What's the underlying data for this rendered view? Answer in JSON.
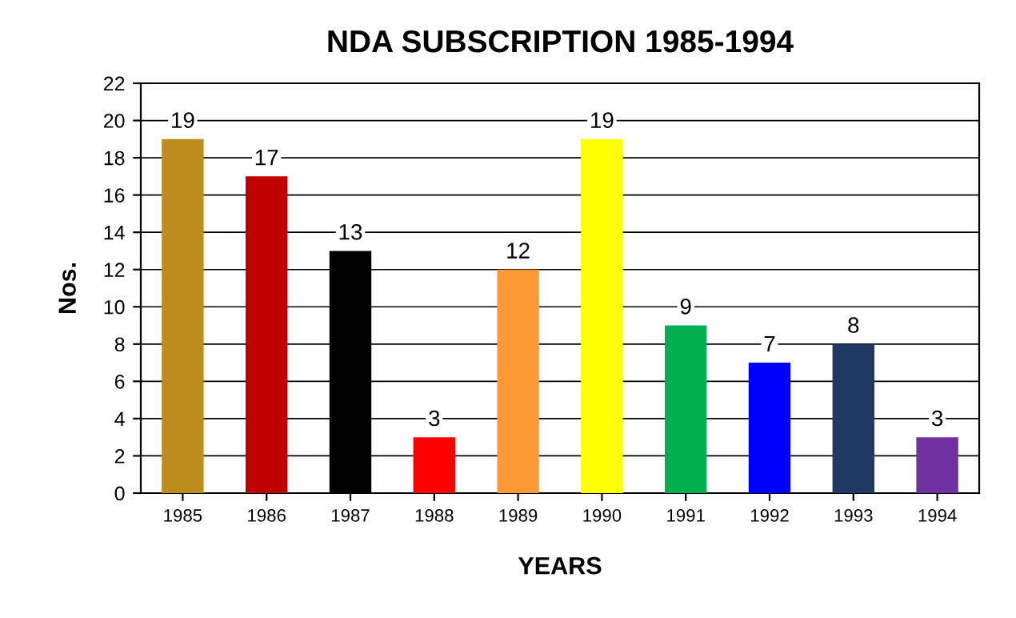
{
  "chart_data": {
    "type": "bar",
    "title": "NDA SUBSCRIPTION 1985-1994",
    "xlabel": "YEARS",
    "ylabel": "Nos.",
    "categories": [
      "1985",
      "1986",
      "1987",
      "1988",
      "1989",
      "1990",
      "1991",
      "1992",
      "1993",
      "1994"
    ],
    "values": [
      19,
      17,
      13,
      3,
      12,
      19,
      9,
      7,
      8,
      3
    ],
    "colors": [
      "#bc8c1c",
      "#c00000",
      "#000000",
      "#ff0000",
      "#ff9933",
      "#ffff00",
      "#00b050",
      "#0000ff",
      "#1f3864",
      "#7030a0"
    ],
    "ylim": [
      0,
      22
    ],
    "yticks": [
      0,
      2,
      4,
      6,
      8,
      10,
      12,
      14,
      16,
      18,
      20,
      22
    ],
    "grid": "y",
    "data_labels": true,
    "legend": false
  }
}
